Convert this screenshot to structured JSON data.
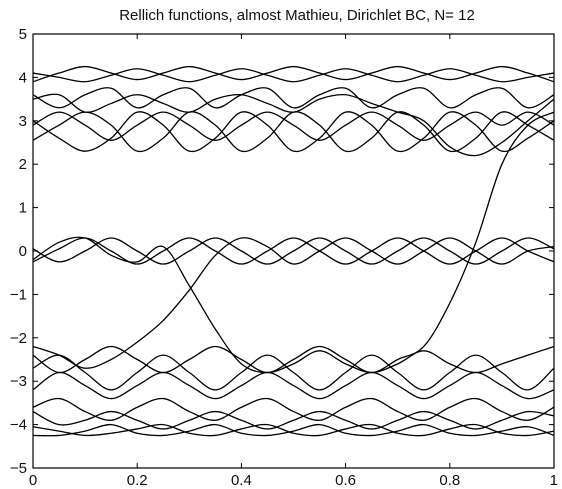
{
  "chart_data": {
    "type": "line",
    "title": "Rellich functions, almost Mathieu, Dirichlet BC,  N= 12",
    "xlabel": "",
    "ylabel": "",
    "xlim": [
      0,
      1
    ],
    "ylim": [
      -5,
      5
    ],
    "xticks": [
      0,
      0.2,
      0.4,
      0.6,
      0.8,
      1
    ],
    "xtick_labels": [
      "0",
      "0.2",
      "0.4",
      "0.6",
      "0.8",
      "1"
    ],
    "yticks": [
      -5,
      -4,
      -3,
      -2,
      -1,
      0,
      1,
      2,
      3,
      4,
      5
    ],
    "ytick_labels": [
      "−5",
      "−4",
      "−3",
      "−2",
      "−1",
      "0",
      "1",
      "2",
      "3",
      "4",
      "5"
    ],
    "grid": false,
    "legend": "none",
    "line_color": "#000000",
    "x": [
      0,
      0.05,
      0.1,
      0.15,
      0.2,
      0.25,
      0.3,
      0.35,
      0.4,
      0.45,
      0.5,
      0.55,
      0.6,
      0.65,
      0.7,
      0.75,
      0.8,
      0.85,
      0.9,
      0.95,
      1
    ],
    "series": [
      {
        "values": [
          4.1,
          4.0,
          3.9,
          4.05,
          4.2,
          4.05,
          3.9,
          4.05,
          4.2,
          4.05,
          3.9,
          4.05,
          4.2,
          4.05,
          3.9,
          4.05,
          4.2,
          4.05,
          3.9,
          4.0,
          4.1
        ]
      },
      {
        "values": [
          3.9,
          4.1,
          4.25,
          4.1,
          3.95,
          4.1,
          4.25,
          4.1,
          3.95,
          4.1,
          4.25,
          4.1,
          3.95,
          4.1,
          4.25,
          4.1,
          3.95,
          4.1,
          4.25,
          4.1,
          3.9
        ]
      },
      {
        "values": [
          3.6,
          3.3,
          3.6,
          3.75,
          3.3,
          3.6,
          3.75,
          3.3,
          3.6,
          3.75,
          3.3,
          3.6,
          3.75,
          3.3,
          3.6,
          3.75,
          3.3,
          3.6,
          3.75,
          3.3,
          3.6
        ]
      },
      {
        "values": [
          2.9,
          3.2,
          2.9,
          2.55,
          2.9,
          3.2,
          2.9,
          2.55,
          2.9,
          3.2,
          2.9,
          2.55,
          2.9,
          3.2,
          2.9,
          2.55,
          2.9,
          3.2,
          2.9,
          3.2,
          2.9
        ]
      },
      {
        "values": [
          2.55,
          2.9,
          3.2,
          2.9,
          2.3,
          2.6,
          3.2,
          2.9,
          2.3,
          2.6,
          3.2,
          2.9,
          2.3,
          2.6,
          3.2,
          2.9,
          2.3,
          2.6,
          3.2,
          2.9,
          2.55
        ]
      },
      {
        "values": [
          3.0,
          2.6,
          2.3,
          2.6,
          3.2,
          2.9,
          2.3,
          2.6,
          3.2,
          2.9,
          2.3,
          2.6,
          3.2,
          2.9,
          2.3,
          2.6,
          3.2,
          2.9,
          2.3,
          2.6,
          3.0
        ]
      },
      {
        "values": [
          3.5,
          3.6,
          3.2,
          3.4,
          3.6,
          3.4,
          3.2,
          3.5,
          3.6,
          3.4,
          3.2,
          3.5,
          3.6,
          3.4,
          3.2,
          3.0,
          2.4,
          2.2,
          2.5,
          3.0,
          3.5
        ]
      },
      {
        "values": [
          0.05,
          -0.25,
          0.0,
          0.3,
          0.0,
          -0.3,
          0.0,
          0.3,
          0.0,
          -0.3,
          0.0,
          0.3,
          0.0,
          -0.3,
          0.0,
          0.3,
          0.0,
          -0.3,
          0.0,
          0.3,
          0.05
        ]
      },
      {
        "values": [
          -0.25,
          0.05,
          0.3,
          0.0,
          -0.3,
          0.0,
          0.3,
          0.0,
          -0.3,
          0.0,
          0.3,
          0.0,
          -0.3,
          0.0,
          0.3,
          0.0,
          -0.3,
          0.0,
          0.3,
          0.0,
          -0.25
        ]
      },
      {
        "values": [
          -0.2,
          0.2,
          0.3,
          -0.1,
          -0.25,
          0.1,
          -0.8,
          -1.8,
          -2.6,
          -2.8,
          -2.6,
          -2.3,
          -2.6,
          -2.8,
          -2.6,
          -2.3,
          -2.6,
          -2.8,
          -2.6,
          -2.4,
          -2.2
        ]
      },
      {
        "values": [
          -2.2,
          -2.4,
          -2.7,
          -2.5,
          -2.1,
          -1.6,
          -0.9,
          -0.1,
          0.3,
          0.1,
          -0.3,
          0.0,
          0.3,
          0.0,
          -0.3,
          0.0,
          0.3,
          0.0,
          -0.3,
          0.0,
          0.1
        ]
      },
      {
        "values": [
          -2.4,
          -2.8,
          -2.5,
          -2.2,
          -2.5,
          -2.8,
          -2.5,
          -2.2,
          -2.5,
          -2.8,
          -2.5,
          -2.2,
          -2.5,
          -2.8,
          -2.5,
          -2.2,
          -1.2,
          0.2,
          2.0,
          2.9,
          3.2
        ]
      },
      {
        "values": [
          -2.7,
          -2.4,
          -2.8,
          -3.2,
          -2.8,
          -2.4,
          -2.8,
          -3.2,
          -2.8,
          -2.4,
          -2.8,
          -3.2,
          -2.8,
          -2.4,
          -2.8,
          -3.2,
          -2.8,
          -2.4,
          -2.8,
          -3.2,
          -2.7
        ]
      },
      {
        "values": [
          -3.2,
          -2.8,
          -3.1,
          -3.4,
          -3.1,
          -2.8,
          -3.1,
          -3.4,
          -3.1,
          -2.8,
          -3.1,
          -3.4,
          -3.1,
          -2.8,
          -3.1,
          -3.4,
          -3.1,
          -2.8,
          -3.1,
          -3.4,
          -3.2
        ]
      },
      {
        "values": [
          -3.6,
          -3.4,
          -3.7,
          -3.9,
          -3.6,
          -3.4,
          -3.7,
          -3.9,
          -3.6,
          -3.4,
          -3.7,
          -3.9,
          -3.6,
          -3.4,
          -3.7,
          -3.9,
          -3.6,
          -3.4,
          -3.7,
          -3.9,
          -3.6
        ]
      },
      {
        "values": [
          -3.7,
          -4.0,
          -3.9,
          -3.7,
          -3.9,
          -4.1,
          -3.9,
          -3.7,
          -3.9,
          -4.1,
          -3.9,
          -3.7,
          -3.9,
          -4.1,
          -3.9,
          -3.7,
          -3.9,
          -4.1,
          -3.9,
          -3.7,
          -3.8
        ]
      },
      {
        "values": [
          -4.25,
          -4.25,
          -4.15,
          -4.0,
          -4.2,
          -4.25,
          -4.15,
          -4.0,
          -4.2,
          -4.25,
          -4.15,
          -4.0,
          -4.2,
          -4.25,
          -4.15,
          -4.0,
          -4.2,
          -4.25,
          -4.15,
          -4.05,
          -4.25
        ]
      },
      {
        "values": [
          -4.05,
          -4.15,
          -4.25,
          -4.2,
          -4.1,
          -4.0,
          -4.2,
          -4.25,
          -4.1,
          -4.0,
          -4.2,
          -4.25,
          -4.1,
          -4.0,
          -4.2,
          -4.25,
          -4.1,
          -4.0,
          -4.2,
          -4.25,
          -4.15
        ]
      }
    ]
  }
}
